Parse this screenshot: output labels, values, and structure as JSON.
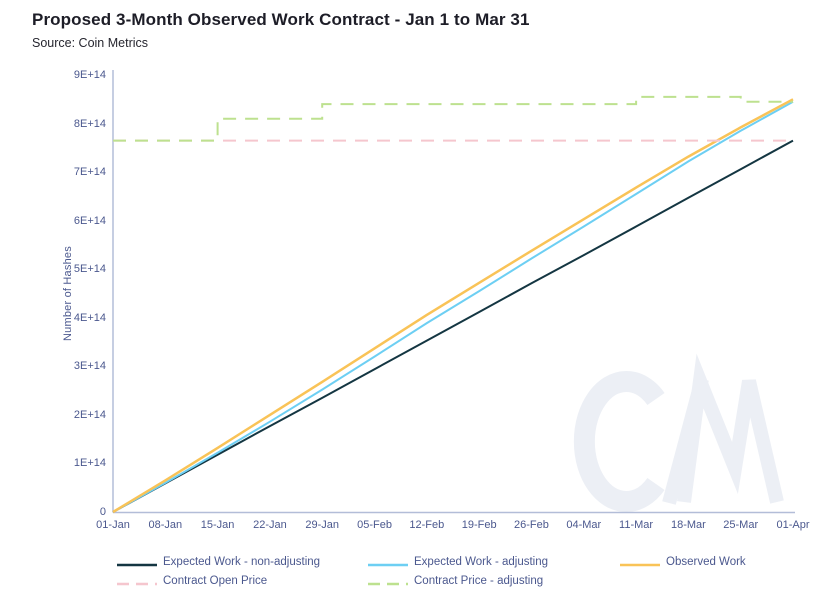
{
  "header": {
    "title": "Proposed 3-Month Observed Work Contract - Jan 1 to Mar 31",
    "subtitle": "Source: Coin Metrics"
  },
  "chart_data": {
    "type": "line",
    "title": "Proposed 3-Month Observed Work Contract - Jan 1 to Mar 31",
    "xlabel": "",
    "ylabel": "Number of Hashes",
    "ylim": [
      0,
      900000000000000.0
    ],
    "grid": false,
    "legend_position": "bottom",
    "y_ticks": [
      "0",
      "1E+14",
      "2E+14",
      "3E+14",
      "4E+14",
      "5E+14",
      "6E+14",
      "7E+14",
      "8E+14",
      "9E+14"
    ],
    "categories": [
      "01-Jan",
      "08-Jan",
      "15-Jan",
      "22-Jan",
      "29-Jan",
      "05-Feb",
      "12-Feb",
      "19-Feb",
      "26-Feb",
      "04-Mar",
      "11-Mar",
      "18-Mar",
      "25-Mar",
      "01-Apr"
    ],
    "series": [
      {
        "name": "Expected Work - non-adjusting",
        "color": "#143642",
        "style": "solid",
        "interp": "linear",
        "width": 2,
        "values": [
          0,
          59000000000000.0,
          118000000000000.0,
          177000000000000.0,
          235000000000000.0,
          294000000000000.0,
          353000000000000.0,
          412000000000000.0,
          471000000000000.0,
          529000000000000.0,
          588000000000000.0,
          647000000000000.0,
          706000000000000.0,
          765000000000000.0
        ]
      },
      {
        "name": "Expected Work - adjusting",
        "color": "#6DCFF3",
        "style": "solid",
        "interp": "linear",
        "width": 2,
        "values": [
          0,
          60000000000000.0,
          122000000000000.0,
          186000000000000.0,
          252000000000000.0,
          320000000000000.0,
          389000000000000.0,
          455000000000000.0,
          522000000000000.0,
          588000000000000.0,
          655000000000000.0,
          722000000000000.0,
          785000000000000.0,
          845000000000000.0
        ]
      },
      {
        "name": "Observed Work",
        "color": "#F9C357",
        "style": "solid",
        "interp": "linear",
        "width": 2.5,
        "values": [
          0,
          65000000000000.0,
          132000000000000.0,
          200000000000000.0,
          268000000000000.0,
          337000000000000.0,
          406000000000000.0,
          472000000000000.0,
          538000000000000.0,
          603000000000000.0,
          668000000000000.0,
          732000000000000.0,
          792000000000000.0,
          850000000000000.0
        ]
      },
      {
        "name": "Contract Open Price",
        "color": "#F5C6CE",
        "style": "dashed",
        "interp": "linear",
        "width": 2,
        "values": [
          765000000000000.0,
          765000000000000.0,
          765000000000000.0,
          765000000000000.0,
          765000000000000.0,
          765000000000000.0,
          765000000000000.0,
          765000000000000.0,
          765000000000000.0,
          765000000000000.0,
          765000000000000.0,
          765000000000000.0,
          765000000000000.0,
          765000000000000.0
        ]
      },
      {
        "name": "Contract Price - adjusting",
        "color": "#BDE18F",
        "style": "dashed",
        "interp": "step",
        "width": 2,
        "values": [
          765000000000000.0,
          765000000000000.0,
          810000000000000.0,
          810000000000000.0,
          840000000000000.0,
          840000000000000.0,
          840000000000000.0,
          840000000000000.0,
          840000000000000.0,
          840000000000000.0,
          855000000000000.0,
          855000000000000.0,
          845000000000000.0,
          845000000000000.0
        ]
      }
    ]
  },
  "watermark": {
    "name": "Coin Metrics logo",
    "color": "#ECEFF5"
  }
}
